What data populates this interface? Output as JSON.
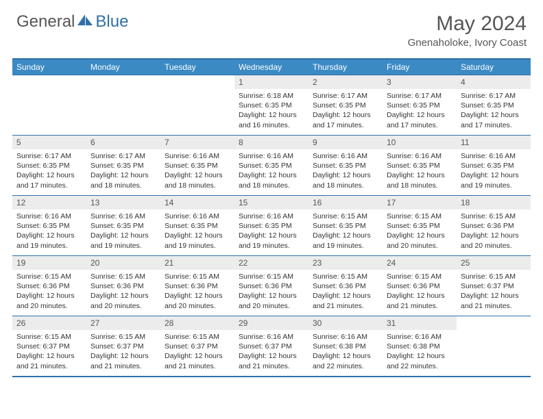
{
  "brand": {
    "part1": "General",
    "part2": "Blue"
  },
  "title": "May 2024",
  "location": "Gnenaholoke, Ivory Coast",
  "colors": {
    "header_bg": "#3b8ac4",
    "border": "#2f6fa8",
    "daynum_bg": "#ececec",
    "text": "#555555"
  },
  "weekdays": [
    "Sunday",
    "Monday",
    "Tuesday",
    "Wednesday",
    "Thursday",
    "Friday",
    "Saturday"
  ],
  "weeks": [
    [
      {
        "n": "",
        "sr": "",
        "ss": "",
        "dl": ""
      },
      {
        "n": "",
        "sr": "",
        "ss": "",
        "dl": ""
      },
      {
        "n": "",
        "sr": "",
        "ss": "",
        "dl": ""
      },
      {
        "n": "1",
        "sr": "6:18 AM",
        "ss": "6:35 PM",
        "dl": "12 hours and 16 minutes."
      },
      {
        "n": "2",
        "sr": "6:17 AM",
        "ss": "6:35 PM",
        "dl": "12 hours and 17 minutes."
      },
      {
        "n": "3",
        "sr": "6:17 AM",
        "ss": "6:35 PM",
        "dl": "12 hours and 17 minutes."
      },
      {
        "n": "4",
        "sr": "6:17 AM",
        "ss": "6:35 PM",
        "dl": "12 hours and 17 minutes."
      }
    ],
    [
      {
        "n": "5",
        "sr": "6:17 AM",
        "ss": "6:35 PM",
        "dl": "12 hours and 17 minutes."
      },
      {
        "n": "6",
        "sr": "6:17 AM",
        "ss": "6:35 PM",
        "dl": "12 hours and 18 minutes."
      },
      {
        "n": "7",
        "sr": "6:16 AM",
        "ss": "6:35 PM",
        "dl": "12 hours and 18 minutes."
      },
      {
        "n": "8",
        "sr": "6:16 AM",
        "ss": "6:35 PM",
        "dl": "12 hours and 18 minutes."
      },
      {
        "n": "9",
        "sr": "6:16 AM",
        "ss": "6:35 PM",
        "dl": "12 hours and 18 minutes."
      },
      {
        "n": "10",
        "sr": "6:16 AM",
        "ss": "6:35 PM",
        "dl": "12 hours and 18 minutes."
      },
      {
        "n": "11",
        "sr": "6:16 AM",
        "ss": "6:35 PM",
        "dl": "12 hours and 19 minutes."
      }
    ],
    [
      {
        "n": "12",
        "sr": "6:16 AM",
        "ss": "6:35 PM",
        "dl": "12 hours and 19 minutes."
      },
      {
        "n": "13",
        "sr": "6:16 AM",
        "ss": "6:35 PM",
        "dl": "12 hours and 19 minutes."
      },
      {
        "n": "14",
        "sr": "6:16 AM",
        "ss": "6:35 PM",
        "dl": "12 hours and 19 minutes."
      },
      {
        "n": "15",
        "sr": "6:16 AM",
        "ss": "6:35 PM",
        "dl": "12 hours and 19 minutes."
      },
      {
        "n": "16",
        "sr": "6:15 AM",
        "ss": "6:35 PM",
        "dl": "12 hours and 19 minutes."
      },
      {
        "n": "17",
        "sr": "6:15 AM",
        "ss": "6:35 PM",
        "dl": "12 hours and 20 minutes."
      },
      {
        "n": "18",
        "sr": "6:15 AM",
        "ss": "6:36 PM",
        "dl": "12 hours and 20 minutes."
      }
    ],
    [
      {
        "n": "19",
        "sr": "6:15 AM",
        "ss": "6:36 PM",
        "dl": "12 hours and 20 minutes."
      },
      {
        "n": "20",
        "sr": "6:15 AM",
        "ss": "6:36 PM",
        "dl": "12 hours and 20 minutes."
      },
      {
        "n": "21",
        "sr": "6:15 AM",
        "ss": "6:36 PM",
        "dl": "12 hours and 20 minutes."
      },
      {
        "n": "22",
        "sr": "6:15 AM",
        "ss": "6:36 PM",
        "dl": "12 hours and 20 minutes."
      },
      {
        "n": "23",
        "sr": "6:15 AM",
        "ss": "6:36 PM",
        "dl": "12 hours and 21 minutes."
      },
      {
        "n": "24",
        "sr": "6:15 AM",
        "ss": "6:36 PM",
        "dl": "12 hours and 21 minutes."
      },
      {
        "n": "25",
        "sr": "6:15 AM",
        "ss": "6:37 PM",
        "dl": "12 hours and 21 minutes."
      }
    ],
    [
      {
        "n": "26",
        "sr": "6:15 AM",
        "ss": "6:37 PM",
        "dl": "12 hours and 21 minutes."
      },
      {
        "n": "27",
        "sr": "6:15 AM",
        "ss": "6:37 PM",
        "dl": "12 hours and 21 minutes."
      },
      {
        "n": "28",
        "sr": "6:15 AM",
        "ss": "6:37 PM",
        "dl": "12 hours and 21 minutes."
      },
      {
        "n": "29",
        "sr": "6:16 AM",
        "ss": "6:37 PM",
        "dl": "12 hours and 21 minutes."
      },
      {
        "n": "30",
        "sr": "6:16 AM",
        "ss": "6:38 PM",
        "dl": "12 hours and 22 minutes."
      },
      {
        "n": "31",
        "sr": "6:16 AM",
        "ss": "6:38 PM",
        "dl": "12 hours and 22 minutes."
      },
      {
        "n": "",
        "sr": "",
        "ss": "",
        "dl": ""
      }
    ]
  ],
  "labels": {
    "sunrise": "Sunrise:",
    "sunset": "Sunset:",
    "daylight": "Daylight:"
  }
}
